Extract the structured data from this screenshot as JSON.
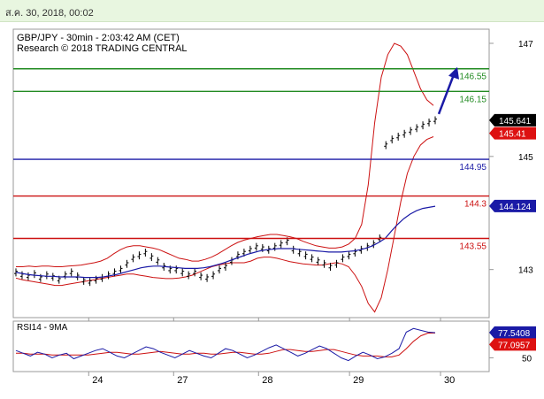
{
  "header": {
    "datetime": "ส.ค. 30, 2018, 00:02"
  },
  "chart_data": {
    "type": "line",
    "title": "GBP/JPY - 30min - 2:03:42 AM (CET)",
    "subtitle": "Research © 2018 TRADING CENTRAL",
    "ylim": [
      142.15,
      147.25
    ],
    "y_ticks": [
      {
        "label": "147",
        "value": 147.0
      },
      {
        "label": "145",
        "value": 145.0
      },
      {
        "label": "143",
        "value": 143.0
      }
    ],
    "x_ticks": [
      {
        "label": "24",
        "index": 12
      },
      {
        "label": "27",
        "index": 26
      },
      {
        "label": "28",
        "index": 40
      },
      {
        "label": "29",
        "index": 55
      },
      {
        "label": "30",
        "index": 70
      }
    ],
    "horizontal_lines": [
      {
        "label": "146.55",
        "value": 146.55,
        "color": "#228b22"
      },
      {
        "label": "146.15",
        "value": 146.15,
        "color": "#228b22"
      },
      {
        "label": "144.95",
        "value": 144.95,
        "color": "#1a1aa6"
      },
      {
        "label": "144.3",
        "value": 144.3,
        "color": "#cc1111"
      },
      {
        "label": "143.55",
        "value": 143.55,
        "color": "#cc1111"
      }
    ],
    "price_badges": [
      {
        "label": "145.641",
        "value": 145.641,
        "bg": "#000000",
        "fg": "#ffffff"
      },
      {
        "label": "145.41",
        "value": 145.41,
        "bg": "#dd1111",
        "fg": "#ffffff"
      },
      {
        "label": "144.124",
        "value": 144.124,
        "bg": "#1a1aa6",
        "fg": "#ffffff"
      }
    ],
    "price_series": [
      142.95,
      142.9,
      142.88,
      142.92,
      142.85,
      142.9,
      142.87,
      142.82,
      142.9,
      142.95,
      142.88,
      142.8,
      142.78,
      142.82,
      142.85,
      142.9,
      142.95,
      143.0,
      143.1,
      143.2,
      143.25,
      143.3,
      143.22,
      143.15,
      143.05,
      143.0,
      143.0,
      142.95,
      142.9,
      142.95,
      142.88,
      142.85,
      142.9,
      143.0,
      143.05,
      143.15,
      143.25,
      143.3,
      143.35,
      143.4,
      143.38,
      143.35,
      143.4,
      143.45,
      143.5,
      143.35,
      143.3,
      143.25,
      143.2,
      143.15,
      143.1,
      143.05,
      143.1,
      143.2,
      143.25,
      143.3,
      143.35,
      143.4,
      143.45,
      143.55,
      145.2,
      145.3,
      145.35,
      145.4,
      145.45,
      145.5,
      145.55,
      145.6,
      145.64
    ],
    "ma_series": [
      142.95,
      142.93,
      142.91,
      142.9,
      142.89,
      142.88,
      142.88,
      142.87,
      142.87,
      142.87,
      142.87,
      142.86,
      142.86,
      142.86,
      142.87,
      142.89,
      142.91,
      142.94,
      142.97,
      143.0,
      143.03,
      143.05,
      143.06,
      143.06,
      143.05,
      143.04,
      143.03,
      143.02,
      143.02,
      143.02,
      143.03,
      143.05,
      143.08,
      143.11,
      143.15,
      143.19,
      143.23,
      143.27,
      143.3,
      143.33,
      143.35,
      143.36,
      143.37,
      143.37,
      143.37,
      143.36,
      143.35,
      143.34,
      143.33,
      143.32,
      143.31,
      143.31,
      143.31,
      143.32,
      143.33,
      143.35,
      143.38,
      143.42,
      143.48,
      143.55,
      143.68,
      143.8,
      143.9,
      143.98,
      144.04,
      144.08,
      144.1,
      144.12
    ],
    "boll_upper": [
      143.05,
      143.05,
      143.06,
      143.05,
      143.06,
      143.06,
      143.05,
      143.05,
      143.06,
      143.07,
      143.08,
      143.1,
      143.12,
      143.15,
      143.2,
      143.28,
      143.35,
      143.4,
      143.42,
      143.42,
      143.4,
      143.38,
      143.35,
      143.3,
      143.25,
      143.2,
      143.18,
      143.15,
      143.15,
      143.18,
      143.22,
      143.28,
      143.35,
      143.42,
      143.48,
      143.52,
      143.55,
      143.58,
      143.6,
      143.62,
      143.62,
      143.6,
      143.58,
      143.55,
      143.5,
      143.46,
      143.42,
      143.4,
      143.38,
      143.38,
      143.4,
      143.45,
      143.55,
      143.8,
      144.5,
      145.6,
      146.4,
      146.8,
      147.0,
      146.95,
      146.8,
      146.5,
      146.2,
      146.0,
      145.9
    ],
    "boll_lower": [
      142.85,
      142.82,
      142.8,
      142.78,
      142.76,
      142.74,
      142.72,
      142.72,
      142.74,
      142.76,
      142.78,
      142.8,
      142.82,
      142.84,
      142.86,
      142.88,
      142.9,
      142.92,
      142.92,
      142.9,
      142.88,
      142.86,
      142.85,
      142.84,
      142.84,
      142.85,
      142.87,
      142.9,
      142.95,
      143.0,
      143.05,
      143.08,
      143.1,
      143.12,
      143.12,
      143.12,
      143.15,
      143.2,
      143.22,
      143.22,
      143.2,
      143.17,
      143.14,
      143.12,
      143.1,
      143.09,
      143.08,
      143.08,
      143.1,
      143.12,
      143.1,
      143.05,
      142.9,
      142.7,
      142.4,
      142.25,
      142.5,
      143.0,
      143.6,
      144.2,
      144.7,
      145.0,
      145.2,
      145.3,
      145.35
    ],
    "projection": {
      "from_value": 145.75,
      "to_value": 146.55
    },
    "rsi": {
      "label": "RSI14 - 9MA",
      "ylim": [
        35,
        90
      ],
      "y_ticks": [
        {
          "label": "50",
          "value": 50
        }
      ],
      "rsi_badge": {
        "label": "77.5408",
        "value": 77.54,
        "bg": "#1a1aa6",
        "fg": "#ffffff"
      },
      "ma_badge": {
        "label": "77.0957",
        "value": 77.1,
        "bg": "#dd1111",
        "fg": "#ffffff"
      },
      "rsi_values": [
        58,
        55,
        52,
        56,
        54,
        50,
        53,
        55,
        49,
        52,
        55,
        58,
        60,
        56,
        52,
        50,
        54,
        58,
        62,
        60,
        56,
        53,
        50,
        54,
        58,
        55,
        52,
        50,
        55,
        60,
        58,
        54,
        50,
        53,
        57,
        61,
        64,
        60,
        56,
        52,
        55,
        59,
        63,
        60,
        55,
        50,
        47,
        52,
        56,
        53,
        49,
        51,
        55,
        60,
        78,
        82,
        80,
        78,
        77.5
      ],
      "ma_values": [
        55,
        55,
        54,
        54,
        54,
        53,
        53,
        53,
        53,
        53,
        53,
        54,
        55,
        56,
        56,
        55,
        54,
        54,
        55,
        56,
        57,
        56,
        55,
        54,
        54,
        55,
        55,
        54,
        54,
        55,
        56,
        56,
        55,
        54,
        54,
        55,
        57,
        59,
        59,
        58,
        57,
        57,
        58,
        59,
        59,
        57,
        55,
        53,
        52,
        52,
        52,
        51,
        51,
        53,
        60,
        68,
        74,
        77,
        77.1
      ]
    }
  }
}
